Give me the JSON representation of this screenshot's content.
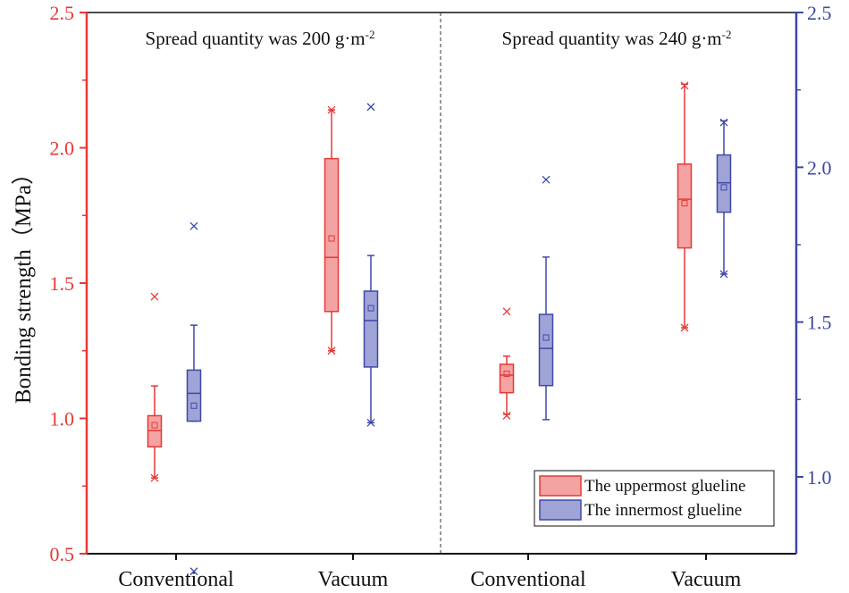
{
  "chart_data": {
    "type": "box",
    "ylabel": "Bonding strength（MPa）",
    "left_axis": {
      "ylim": [
        0.5,
        2.5
      ],
      "ticks": [
        "0.5",
        "1.0",
        "1.5",
        "2.0",
        "2.5"
      ]
    },
    "right_axis": {
      "ylim": [
        0.8,
        2.5
      ],
      "ticks": [
        "1.0",
        "1.5",
        "2.0",
        "2.5"
      ]
    },
    "panels": [
      {
        "title_main": "Spread quantity was 200 g·m",
        "title_sup": "-2",
        "categories": [
          "Conventional",
          "Vacuum"
        ]
      },
      {
        "title_main": "Spread quantity was 240 g·m",
        "title_sup": "-2",
        "categories": [
          "Conventional",
          "Vacuum"
        ]
      }
    ],
    "series": [
      {
        "name": "The uppermost glueline",
        "axis": "left",
        "color": "#e53935",
        "fill": "#f4a3a3"
      },
      {
        "name": "The innermost glueline",
        "axis": "right",
        "color": "#3f48a8",
        "fill": "#9fa3d6"
      }
    ],
    "boxes": [
      {
        "panel": 0,
        "category": "Conventional",
        "series": 0,
        "min": 0.78,
        "q1": 0.895,
        "median": 0.955,
        "q3": 1.01,
        "max": 1.12,
        "mean": 0.975,
        "outliers": [
          1.45,
          0.78
        ]
      },
      {
        "panel": 0,
        "category": "Conventional",
        "series": 1,
        "min": 1.18,
        "q1": 1.18,
        "median": 1.27,
        "q3": 1.345,
        "max": 1.49,
        "mean": 1.23,
        "outliers": [
          1.81,
          0.695
        ]
      },
      {
        "panel": 0,
        "category": "Vacuum",
        "series": 0,
        "min": 1.25,
        "q1": 1.395,
        "median": 1.595,
        "q3": 1.96,
        "max": 2.14,
        "mean": 1.665,
        "outliers": [
          2.14,
          1.25
        ]
      },
      {
        "panel": 0,
        "category": "Vacuum",
        "series": 1,
        "min": 1.175,
        "q1": 1.355,
        "median": 1.505,
        "q3": 1.6,
        "max": 1.715,
        "mean": 1.545,
        "outliers": [
          2.195,
          1.175
        ]
      },
      {
        "panel": 1,
        "category": "Conventional",
        "series": 0,
        "min": 1.015,
        "q1": 1.095,
        "median": 1.16,
        "q3": 1.2,
        "max": 1.23,
        "mean": 1.165,
        "outliers": [
          1.395,
          1.01
        ]
      },
      {
        "panel": 1,
        "category": "Conventional",
        "series": 1,
        "min": 1.185,
        "q1": 1.295,
        "median": 1.415,
        "q3": 1.525,
        "max": 1.71,
        "mean": 1.45,
        "outliers": [
          1.96
        ]
      },
      {
        "panel": 1,
        "category": "Vacuum",
        "series": 0,
        "min": 1.335,
        "q1": 1.63,
        "median": 1.81,
        "q3": 1.94,
        "max": 2.235,
        "mean": 1.795,
        "outliers": [
          2.23,
          1.335
        ]
      },
      {
        "panel": 1,
        "category": "Vacuum",
        "series": 1,
        "min": 1.655,
        "q1": 1.855,
        "median": 1.95,
        "q3": 2.04,
        "max": 2.15,
        "mean": 1.935,
        "outliers": [
          2.145,
          1.655
        ]
      }
    ],
    "legend_position": "bottom-right"
  }
}
